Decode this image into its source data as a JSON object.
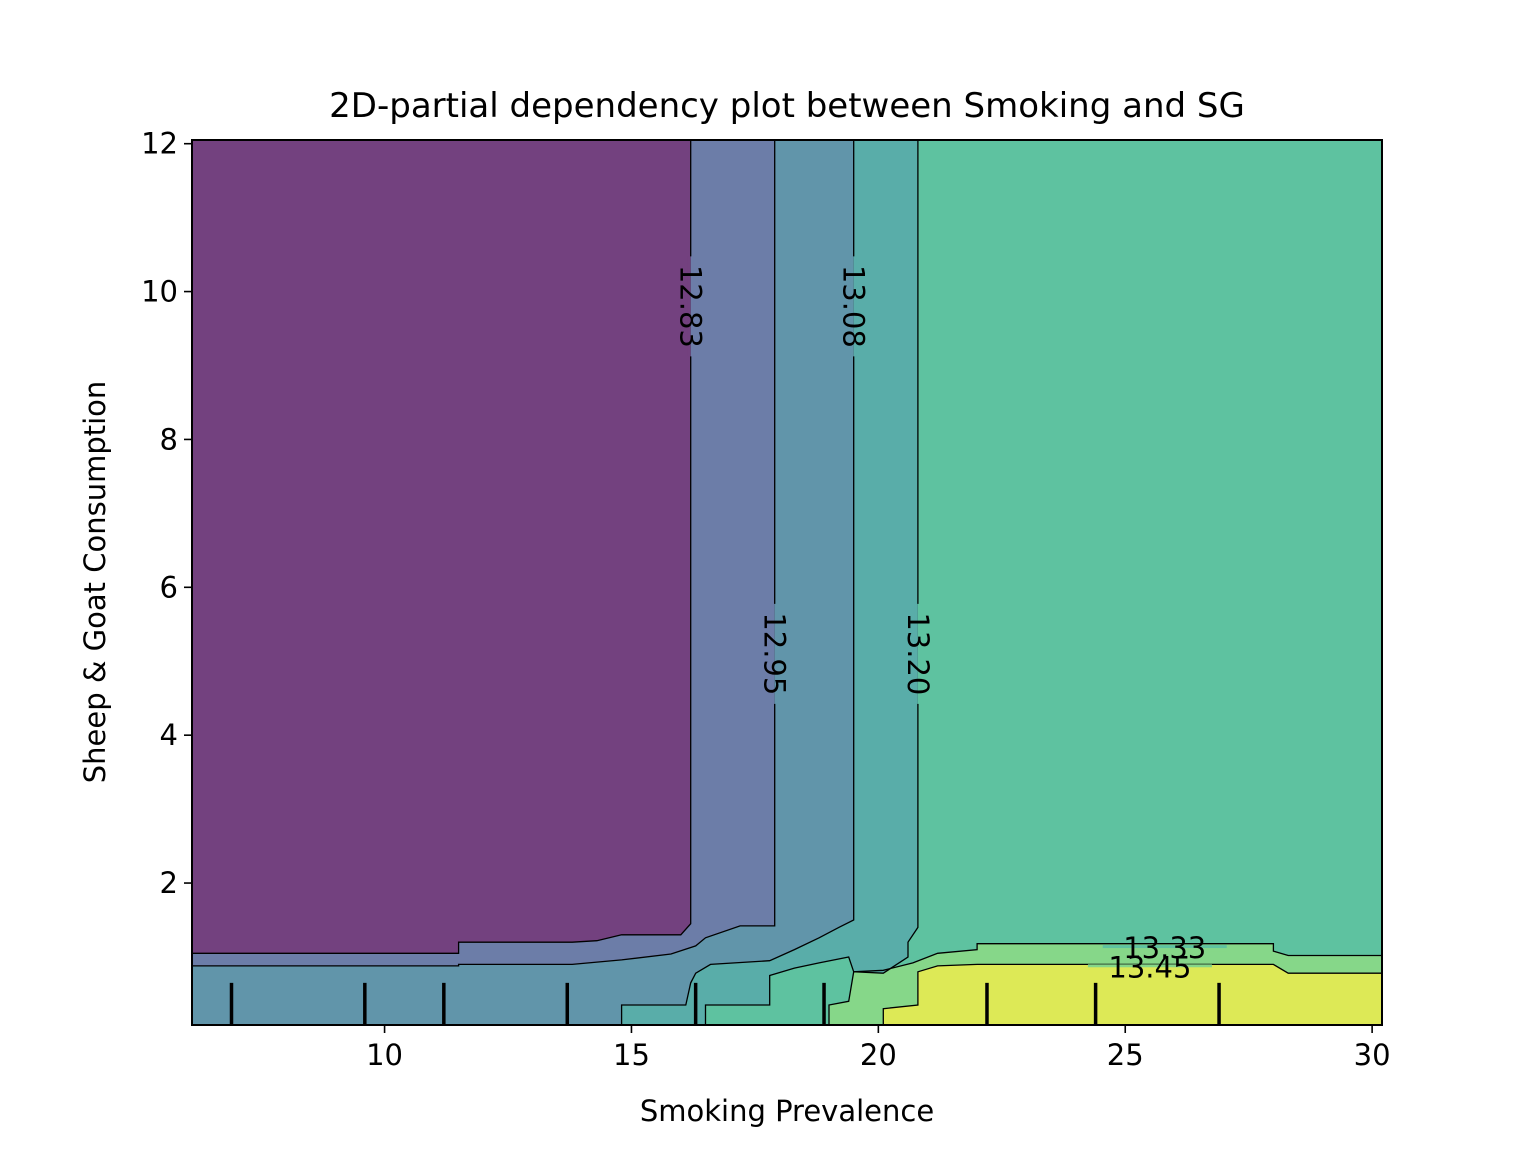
{
  "chart_data": {
    "type": "heatmap",
    "subtype": "filled-contour",
    "title": "2D-partial dependency plot between Smoking and SG",
    "xlabel": "Smoking Prevalence",
    "ylabel": "Sheep & Goat Consumption",
    "xlim": [
      6.1,
      30.2
    ],
    "ylim": [
      0.08,
      12.05
    ],
    "xticks": [
      10,
      15,
      20,
      25,
      30
    ],
    "yticks": [
      2,
      4,
      6,
      8,
      10,
      12
    ],
    "xtick_labels": [
      "10",
      "15",
      "20",
      "25",
      "30"
    ],
    "ytick_labels": [
      "2",
      "4",
      "6",
      "8",
      "10",
      "12"
    ],
    "grid": false,
    "legend": "none",
    "colormap": "viridis",
    "fill_alpha": 0.75,
    "contour_levels": [
      12.83,
      12.95,
      13.08,
      13.2,
      13.33,
      13.45
    ],
    "contour_labels": [
      "12.83",
      "12.95",
      "13.08",
      "13.20",
      "13.33",
      "13.45"
    ],
    "region_colors": [
      "#440154",
      "#3b528b",
      "#2c728e",
      "#21918c",
      "#28ae80",
      "#5ec962",
      "#d1e21d"
    ],
    "contours": [
      {
        "level": "12.83",
        "points": [
          [
            6.1,
            1.05
          ],
          [
            11.5,
            1.05
          ],
          [
            11.5,
            1.2
          ],
          [
            13.8,
            1.2
          ],
          [
            14.3,
            1.22
          ],
          [
            14.8,
            1.3
          ],
          [
            16.0,
            1.3
          ],
          [
            16.2,
            1.45
          ],
          [
            16.2,
            12.05
          ]
        ],
        "label_at": [
          16.2,
          9.8
        ]
      },
      {
        "level": "12.95",
        "points": [
          [
            6.1,
            0.88
          ],
          [
            11.5,
            0.88
          ],
          [
            11.5,
            0.9
          ],
          [
            13.8,
            0.9
          ],
          [
            14.8,
            0.96
          ],
          [
            15.8,
            1.04
          ],
          [
            16.3,
            1.15
          ],
          [
            16.5,
            1.26
          ],
          [
            17.2,
            1.42
          ],
          [
            17.9,
            1.42
          ],
          [
            17.9,
            12.05
          ]
        ],
        "label_at": [
          17.9,
          5.1
        ]
      },
      {
        "level": "13.08",
        "points": [
          [
            14.8,
            0.08
          ],
          [
            14.8,
            0.35
          ],
          [
            16.1,
            0.35
          ],
          [
            16.2,
            0.65
          ],
          [
            16.3,
            0.78
          ],
          [
            16.6,
            0.9
          ],
          [
            17.8,
            0.95
          ],
          [
            18.3,
            1.1
          ],
          [
            18.8,
            1.26
          ],
          [
            19.2,
            1.4
          ],
          [
            19.5,
            1.5
          ],
          [
            19.5,
            12.05
          ]
        ],
        "label_at": [
          19.5,
          9.8
        ]
      },
      {
        "level": "13.20",
        "points": [
          [
            16.5,
            0.08
          ],
          [
            16.5,
            0.35
          ],
          [
            17.8,
            0.35
          ],
          [
            17.8,
            0.75
          ],
          [
            18.3,
            0.85
          ],
          [
            18.8,
            0.92
          ],
          [
            19.4,
            1.0
          ],
          [
            19.5,
            0.8
          ],
          [
            20.1,
            0.78
          ],
          [
            20.6,
            1.0
          ],
          [
            20.6,
            1.2
          ],
          [
            20.8,
            1.4
          ],
          [
            20.8,
            12.05
          ]
        ],
        "label_at": [
          20.8,
          5.1
        ]
      },
      {
        "level": "13.33",
        "points": [
          [
            19.0,
            0.08
          ],
          [
            19.0,
            0.35
          ],
          [
            19.4,
            0.4
          ],
          [
            19.5,
            0.8
          ],
          [
            20.1,
            0.82
          ],
          [
            20.7,
            0.92
          ],
          [
            21.2,
            1.05
          ],
          [
            22.0,
            1.1
          ],
          [
            22.0,
            1.18
          ],
          [
            28.0,
            1.18
          ],
          [
            28.0,
            1.08
          ],
          [
            28.3,
            1.02
          ],
          [
            30.2,
            1.02
          ]
        ],
        "label_at": [
          25.8,
          1.12
        ]
      },
      {
        "level": "13.45",
        "points": [
          [
            20.1,
            0.08
          ],
          [
            20.1,
            0.3
          ],
          [
            20.8,
            0.35
          ],
          [
            20.8,
            0.8
          ],
          [
            21.2,
            0.88
          ],
          [
            22.0,
            0.9
          ],
          [
            28.0,
            0.9
          ],
          [
            28.3,
            0.78
          ],
          [
            30.2,
            0.78
          ]
        ],
        "label_at": [
          25.5,
          0.86
        ]
      }
    ],
    "rug_x": [
      6.9,
      9.6,
      11.2,
      13.7,
      16.3,
      18.9,
      22.2,
      24.4,
      26.9
    ],
    "rug_height": 0.57
  }
}
